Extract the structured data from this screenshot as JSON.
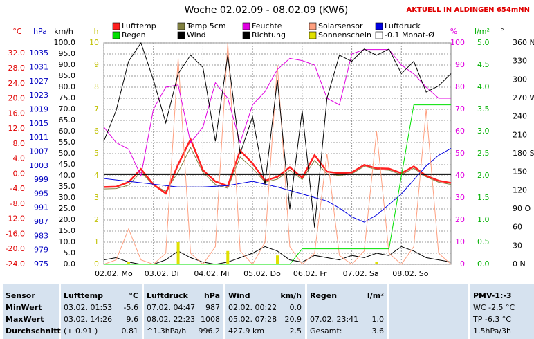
{
  "chart_data": {
    "type": "line",
    "title": "Woche 02.02.09 - 08.02.09 (KW6)",
    "subtitle": "AKTUELL IN ALDINGEN 654mNN",
    "x": [
      0,
      6,
      12,
      18,
      24,
      30,
      36,
      42,
      48,
      54,
      60,
      66,
      72,
      78,
      84,
      90,
      96,
      102,
      108,
      114,
      120,
      126,
      132,
      138,
      144,
      150,
      156,
      162,
      168
    ],
    "xlim": [
      0,
      168
    ],
    "xticks": [
      {
        "value": 0,
        "label": "02.02. Mo"
      },
      {
        "value": 24,
        "label": "03.02. Di"
      },
      {
        "value": 48,
        "label": "04.02. Mi"
      },
      {
        "value": 72,
        "label": "05.02. Do"
      },
      {
        "value": 96,
        "label": "06.02. Fr"
      },
      {
        "value": 120,
        "label": "07.02. Sa"
      },
      {
        "value": 144,
        "label": "08.02. So"
      }
    ],
    "grid": true,
    "axes": [
      {
        "label": "°C",
        "color": "#e00000",
        "lim": [
          -24,
          34.8
        ],
        "ticks": [
          {
            "value": 32,
            "label": "32.0"
          },
          {
            "value": 28,
            "label": "28.0"
          },
          {
            "value": 24,
            "label": "24.0"
          },
          {
            "value": 20,
            "label": "20.0"
          },
          {
            "value": 16,
            "label": "16.0"
          },
          {
            "value": 12,
            "label": "12.0"
          },
          {
            "value": 8,
            "label": "8.0"
          },
          {
            "value": 4,
            "label": "4.0"
          },
          {
            "value": 0,
            "label": "0.0"
          },
          {
            "value": -4,
            "label": "-4.0"
          },
          {
            "value": -8,
            "label": "-8.0"
          },
          {
            "value": -12,
            "label": "-12.0"
          },
          {
            "value": -16,
            "label": "-16.0"
          },
          {
            "value": -20,
            "label": "-20.0"
          },
          {
            "value": -24,
            "label": "-24.0"
          }
        ],
        "series": [
          {
            "name": "Temp 5cm",
            "color": "#808040",
            "values": [
              -4.0,
              -3.9,
              -3.0,
              0.5,
              -3.0,
              -4.6,
              0.5,
              7.0,
              0.4,
              -2.8,
              -3.8,
              4.5,
              1.5,
              -2.2,
              -1.4,
              1.0,
              -1.5,
              3.6,
              0.0,
              -0.4,
              0.0,
              2.0,
              1.2,
              1.0,
              -0.2,
              1.5,
              -0.8,
              -2.2,
              -2.8
            ]
          },
          {
            "name": "Lufttemp",
            "color": "#ff2020",
            "values": [
              -3.5,
              -3.4,
              -2.2,
              1.3,
              -2.8,
              -5.2,
              2.5,
              9.2,
              1.0,
              -2.0,
              -3.2,
              6.2,
              2.8,
              -1.8,
              -0.8,
              1.8,
              -1.0,
              5.0,
              0.6,
              0.2,
              0.4,
              2.4,
              1.5,
              1.4,
              0.2,
              2.0,
              -0.5,
              -1.8,
              -2.4
            ]
          },
          {
            "name": "-0.1 Monat-Ø",
            "color": "#000000",
            "type": "hline",
            "values": [
              -0.1
            ]
          }
        ]
      },
      {
        "label": "hPa",
        "color": "#0000c0",
        "lim": [
          975,
          1038
        ],
        "ticks": [
          1035,
          1031,
          1027,
          1023,
          1019,
          1015,
          1011,
          1007,
          1003,
          999,
          995,
          991,
          987,
          983,
          979,
          975
        ],
        "series": [
          {
            "name": "Luftdruck",
            "color": "#0000e0",
            "values": [
              999.4,
              999.0,
              998.6,
              998.2,
              997.8,
              997.4,
              997.0,
              997.0,
              997.0,
              997.2,
              997.4,
              998.0,
              998.6,
              997.8,
              997.0,
              996.0,
              995.0,
              994.0,
              993.0,
              991.0,
              988.5,
              987.0,
              989.0,
              992.0,
              995.0,
              999.0,
              1003.0,
              1006.0,
              1008.0
            ]
          }
        ]
      },
      {
        "label": "km/h",
        "color": "#000000",
        "lim": [
          0,
          100
        ],
        "ticks": [
          {
            "value": 100,
            "label": "100.0"
          },
          {
            "value": 95,
            "label": "95.0"
          },
          {
            "value": 90,
            "label": "90.0"
          },
          {
            "value": 85,
            "label": "85.0"
          },
          {
            "value": 80,
            "label": "80.0"
          },
          {
            "value": 75,
            "label": "75.0"
          },
          {
            "value": 70,
            "label": "70.0"
          },
          {
            "value": 65,
            "label": "65.0"
          },
          {
            "value": 60,
            "label": "60.0"
          },
          {
            "value": 55,
            "label": "55.0"
          },
          {
            "value": 50,
            "label": "50.0"
          },
          {
            "value": 45,
            "label": "45.0"
          },
          {
            "value": 40,
            "label": "40.0"
          },
          {
            "value": 35,
            "label": "35.0"
          },
          {
            "value": 30,
            "label": "30.0"
          },
          {
            "value": 25,
            "label": "25.0"
          },
          {
            "value": 20,
            "label": "20.0"
          },
          {
            "value": 15,
            "label": "15.0"
          },
          {
            "value": 10,
            "label": "10.0"
          },
          {
            "value": 5,
            "label": "5.0"
          },
          {
            "value": 0,
            "label": "0.0"
          }
        ],
        "series": [
          {
            "name": "Wind",
            "color": "#000000",
            "values": [
              2,
              3,
              1,
              0,
              0,
              2,
              6,
              3,
              1,
              0,
              1,
              3,
              5,
              8,
              6,
              2,
              1,
              4,
              3,
              2,
              4,
              3,
              5,
              4,
              8,
              6,
              3,
              2,
              1
            ]
          }
        ]
      },
      {
        "label": "h",
        "color": "#c0c000",
        "lim": [
          0,
          10
        ],
        "ticks": [
          10,
          9,
          8,
          7,
          6,
          5,
          4,
          3,
          2,
          1,
          0
        ],
        "series": [
          {
            "name": "Sonnenschein",
            "color": "#e0e000",
            "type": "bar",
            "values": [
              0,
              0,
              0.1,
              0,
              0,
              0,
              1.0,
              0,
              0,
              0,
              0.6,
              0,
              0,
              0,
              0.4,
              0,
              0,
              0,
              0,
              0,
              0,
              0,
              0.1,
              0,
              0,
              0,
              0,
              0,
              0
            ]
          }
        ]
      },
      {
        "label": "%",
        "color": "#e000e0",
        "lim": [
          0,
          100
        ],
        "ticks": [
          100,
          90,
          80,
          70,
          60,
          50,
          40,
          30,
          20,
          10,
          0
        ],
        "series": [
          {
            "name": "Solarsensor",
            "color": "#ffa080",
            "values": [
              0,
              2,
              16,
              2,
              0,
              5,
              93,
              5,
              0,
              8,
              100,
              6,
              0,
              10,
              90,
              8,
              0,
              5,
              50,
              4,
              0,
              6,
              60,
              5,
              0,
              8,
              70,
              5,
              0
            ]
          },
          {
            "name": "Feuchte",
            "color": "#e000e0",
            "values": [
              62,
              55,
              52,
              40,
              70,
              80,
              81,
              55,
              62,
              82,
              75,
              55,
              72,
              78,
              88,
              93,
              92,
              90,
              75,
              72,
              95,
              97,
              97,
              97,
              90,
              86,
              80,
              75,
              75
            ]
          }
        ]
      },
      {
        "label": "l/m²",
        "color": "#00b000",
        "lim": [
          0,
          5
        ],
        "ticks": [
          {
            "value": 5,
            "label": "5.0"
          },
          {
            "value": 4.5,
            "label": "4.5"
          },
          {
            "value": 4,
            "label": "4.0"
          },
          {
            "value": 3.5,
            "label": "3.5"
          },
          {
            "value": 3,
            "label": "3.0"
          },
          {
            "value": 2.5,
            "label": "2.5"
          },
          {
            "value": 2,
            "label": "2.0"
          },
          {
            "value": 1.5,
            "label": "1.5"
          },
          {
            "value": 1,
            "label": "1.0"
          },
          {
            "value": 0.5,
            "label": "0.5"
          },
          {
            "value": 0,
            "label": "0.0"
          }
        ],
        "series": [
          {
            "name": "Regen",
            "color": "#00e000",
            "values": [
              0,
              0,
              0,
              0,
              0,
              0,
              0,
              0,
              0,
              0,
              0,
              0,
              0,
              0,
              0,
              0,
              0.35,
              0.35,
              0.35,
              0.35,
              0.35,
              0.35,
              0.35,
              0.35,
              2.0,
              3.6,
              3.6,
              3.6,
              3.6
            ]
          }
        ]
      },
      {
        "label": "°",
        "color": "#000000",
        "lim": [
          0,
          360
        ],
        "ticks": [
          {
            "value": 360,
            "label": "360 N"
          },
          330,
          300,
          {
            "value": 270,
            "label": "270 W"
          },
          240,
          210,
          {
            "value": 180,
            "label": "180 S"
          },
          150,
          120,
          {
            "value": 90,
            "label": "90 O"
          },
          60,
          30,
          {
            "value": 0,
            "label": "0 N"
          }
        ],
        "series": [
          {
            "name": "Richtung",
            "color": "#000000",
            "values": [
              200,
              250,
              330,
              360,
              300,
              230,
              310,
              340,
              320,
              200,
              340,
              180,
              240,
              130,
              300,
              90,
              250,
              60,
              270,
              340,
              330,
              350,
              340,
              350,
              310,
              330,
              280,
              290,
              310
            ]
          }
        ]
      }
    ]
  },
  "stats": [
    {
      "title": "Sensor",
      "rows": [
        [
          "MinWert"
        ],
        [
          "MaxWert"
        ],
        [
          "Durchschnitt"
        ]
      ]
    },
    {
      "title": "Lufttemp",
      "unit": "°C",
      "rows": [
        [
          "03.02.  01:53",
          "-5.6"
        ],
        [
          "03.02.  14:26",
          "9.6"
        ],
        [
          "(+ 0.91 )",
          "0.81"
        ]
      ]
    },
    {
      "title": "Luftdruck",
      "unit": "hPa",
      "rows": [
        [
          "07.02.  04:47",
          "987"
        ],
        [
          "08.02.  22:23",
          "1008"
        ],
        [
          "^1.3hPa/h",
          "996.2"
        ]
      ]
    },
    {
      "title": "Wind",
      "unit": "km/h",
      "rows": [
        [
          "02.02.  00:22",
          "0.0"
        ],
        [
          "05.02.  07:28",
          "20.9"
        ],
        [
          "427.9 km",
          "2.5"
        ]
      ]
    },
    {
      "title": "Regen",
      "unit": "l/m²",
      "rows": [
        null,
        [
          "07.02.  23:41",
          "1.0"
        ],
        [
          "Gesamt:",
          "3.6"
        ]
      ]
    },
    {
      "title": "PMV-1:-3",
      "rows": [
        [
          "WC -2.5 °C"
        ],
        [
          "TP -6.3 °C"
        ],
        [
          "1.5hPa/3h"
        ]
      ]
    }
  ]
}
